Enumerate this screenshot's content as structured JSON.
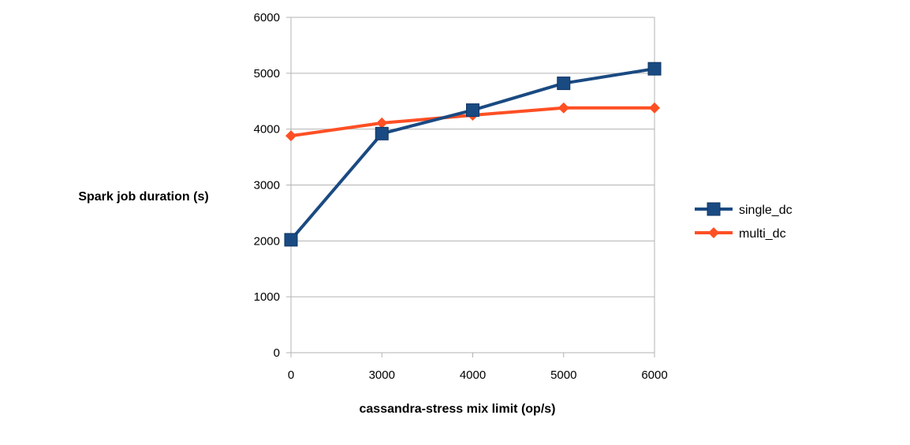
{
  "chart_data": {
    "type": "line",
    "title": "",
    "xlabel": "cassandra-stress mix limit (op/s)",
    "ylabel": "Spark job duration (s)",
    "categories": [
      "0",
      "3000",
      "4000",
      "5000",
      "6000"
    ],
    "ylim": [
      0,
      6000
    ],
    "yticks": [
      0,
      1000,
      2000,
      3000,
      4000,
      5000,
      6000
    ],
    "grid": true,
    "legend_position": "right",
    "series": [
      {
        "name": "single_dc",
        "values": [
          2020,
          3920,
          4340,
          4820,
          5080
        ],
        "color": "#1a4a82",
        "marker": "square"
      },
      {
        "name": "multi_dc",
        "values": [
          3880,
          4110,
          4250,
          4380,
          4380
        ],
        "color": "#ff4f24",
        "marker": "diamond"
      }
    ]
  }
}
